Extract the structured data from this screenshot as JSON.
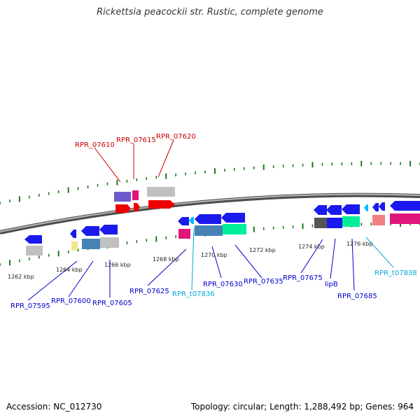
{
  "title": "Rickettsia peacockii str. Rustic, complete genome",
  "footer": {
    "accession": "Accession: NC_012730",
    "summary": "Topology: circular; Length: 1,288,492 bp; Genes: 964"
  },
  "colors": {
    "red_label": "#cc0000",
    "blue_label": "#0000cc",
    "cyan_label": "#00aadd",
    "tick_green": "#1a7a1a",
    "backbone": "#777777"
  },
  "kbp_labels": [
    {
      "text": "1262 kbp"
    },
    {
      "text": "1264 kbp"
    },
    {
      "text": "1266 kbp"
    },
    {
      "text": "1268 kbp"
    },
    {
      "text": "1270 kbp"
    },
    {
      "text": "1272 kbp"
    },
    {
      "text": "1274 kbp"
    },
    {
      "text": "1276 kbp"
    }
  ],
  "gene_labels": [
    {
      "text": "RPR_07610",
      "color": "#cc0000"
    },
    {
      "text": "RPR_07615",
      "color": "#cc0000"
    },
    {
      "text": "RPR_07620",
      "color": "#cc0000"
    },
    {
      "text": "RPR_07595",
      "color": "#0000cc"
    },
    {
      "text": "RPR_07600",
      "color": "#0000cc"
    },
    {
      "text": "RPR_07605",
      "color": "#0000cc"
    },
    {
      "text": "RPR_07625",
      "color": "#0000cc"
    },
    {
      "text": "RPR_t07836",
      "color": "#00aadd"
    },
    {
      "text": "RPR_07630",
      "color": "#0000cc"
    },
    {
      "text": "RPR_07635",
      "color": "#0000cc"
    },
    {
      "text": "RPR_07675",
      "color": "#0000cc"
    },
    {
      "text": "lipB",
      "color": "#0000cc"
    },
    {
      "text": "RPR_07685",
      "color": "#0000cc"
    },
    {
      "text": "RPR_t07838",
      "color": "#00aadd"
    }
  ]
}
